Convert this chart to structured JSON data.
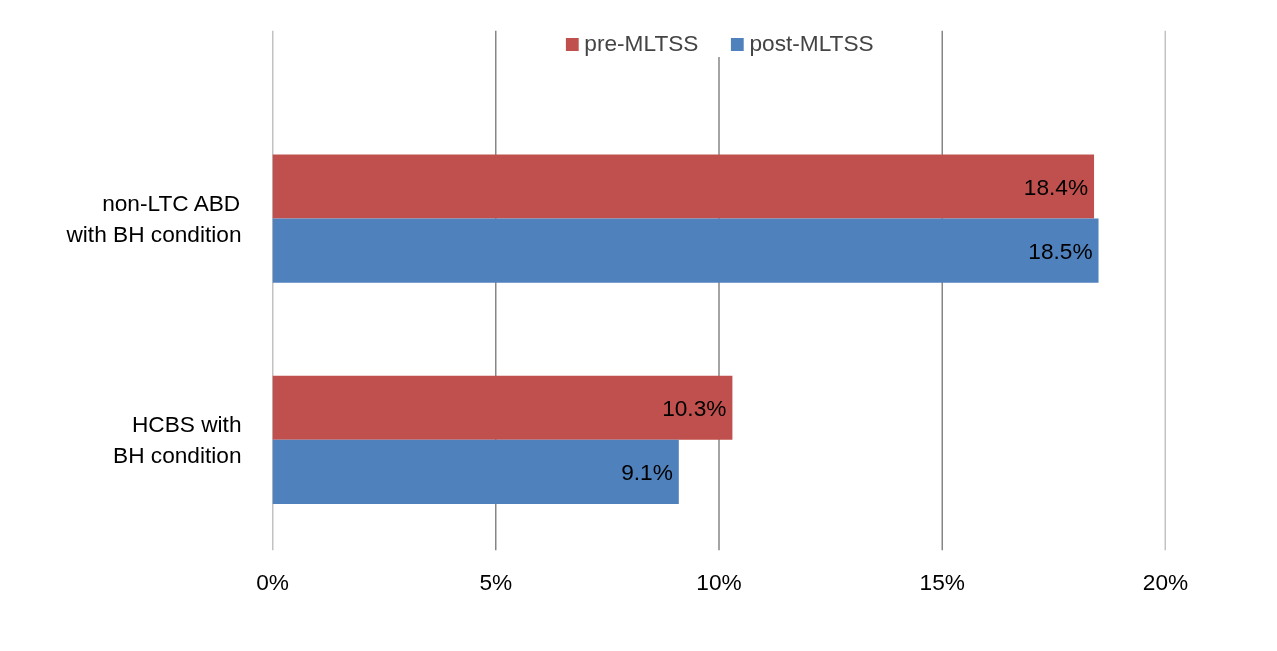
{
  "chart_data": {
    "type": "bar",
    "orientation": "horizontal",
    "categories": [
      "non-LTC ABD\nwith BH condition",
      "HCBS with\nBH condition"
    ],
    "series": [
      {
        "name": "pre-MLTSS",
        "color": "#c0504d",
        "values": [
          18.4,
          10.3
        ],
        "value_labels": [
          "18.4%",
          "10.3%"
        ]
      },
      {
        "name": "post-MLTSS",
        "color": "#4f81bd",
        "values": [
          18.5,
          9.1
        ],
        "value_labels": [
          "18.5%",
          "9.1%"
        ]
      }
    ],
    "xlim": [
      0,
      20
    ],
    "xticks": [
      {
        "value": 0,
        "label": "0%"
      },
      {
        "value": 5,
        "label": "5%"
      },
      {
        "value": 10,
        "label": "10%"
      },
      {
        "value": 15,
        "label": "15%"
      },
      {
        "value": 20,
        "label": "20%"
      }
    ],
    "grid": "x",
    "legend": "top"
  }
}
